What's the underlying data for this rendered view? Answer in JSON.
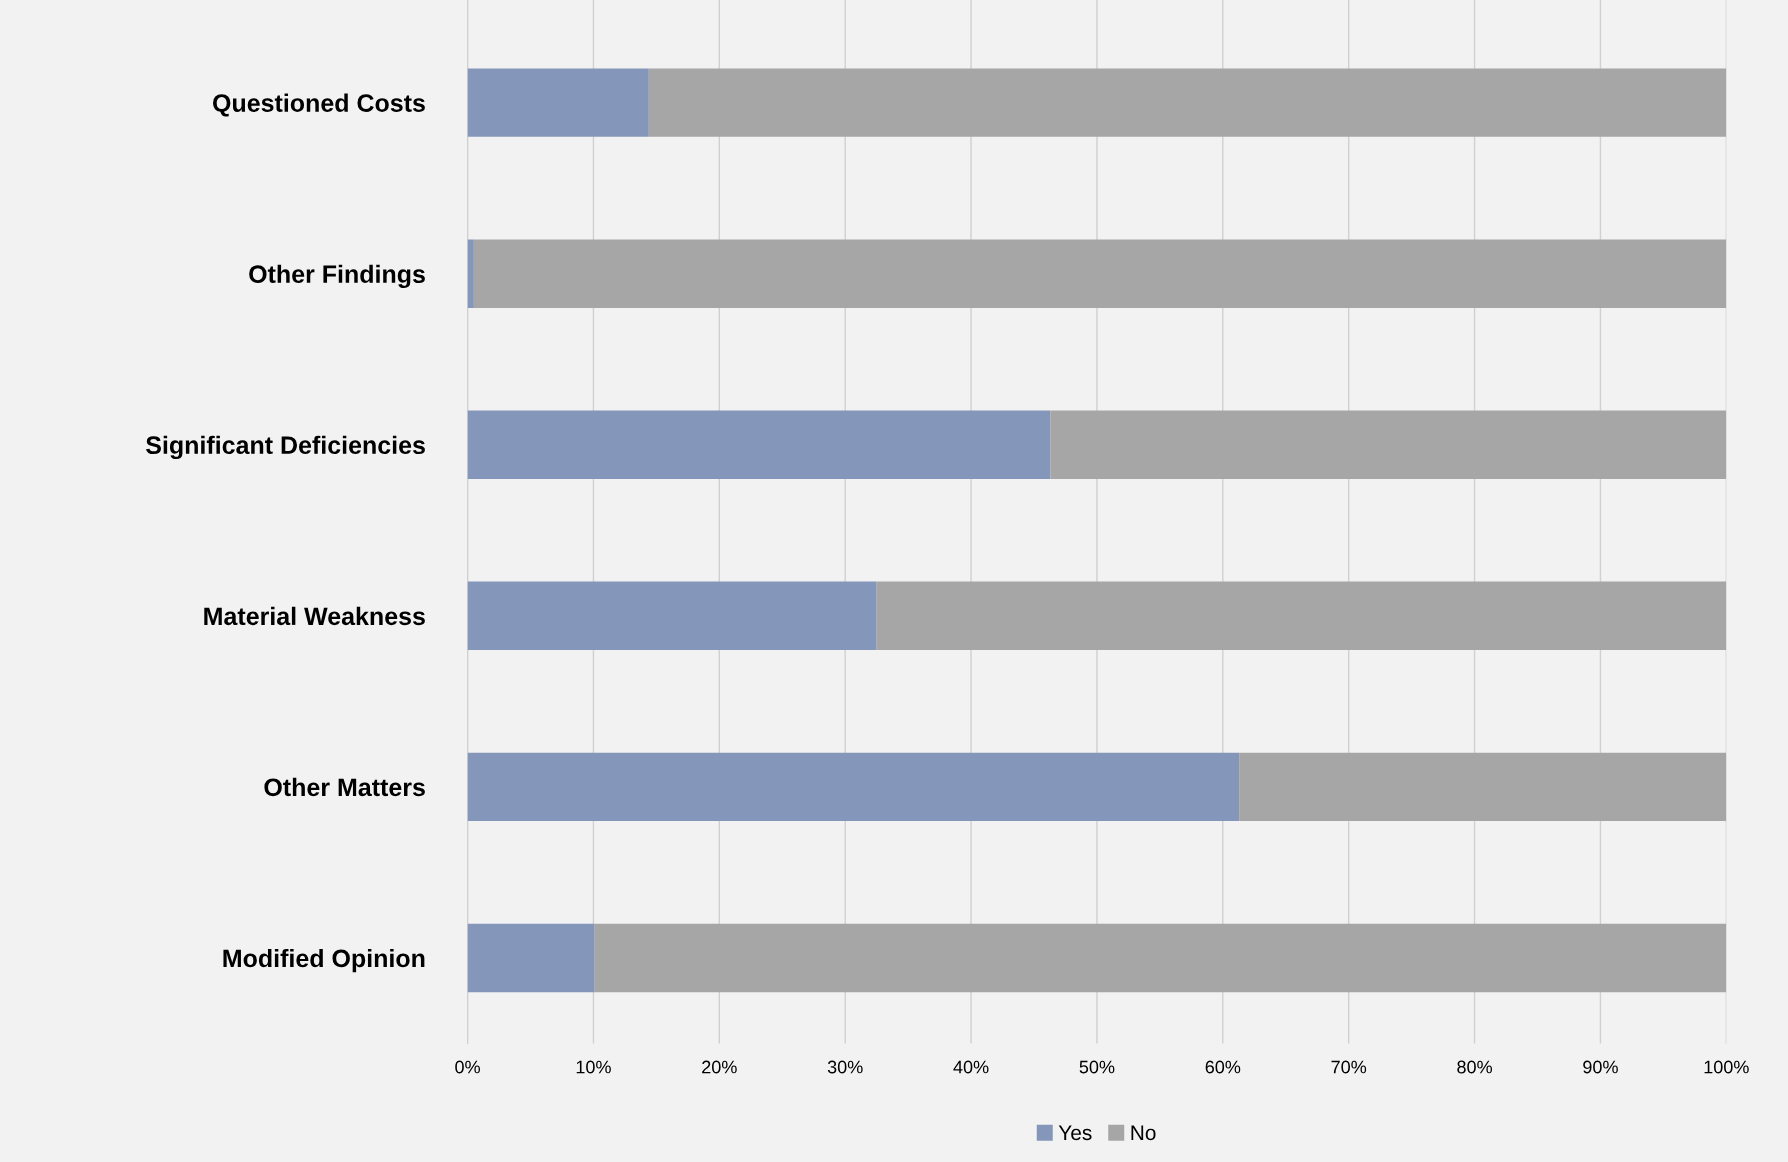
{
  "chart_data": {
    "type": "bar",
    "orientation": "horizontal",
    "stacked": true,
    "categories": [
      "Questioned Costs",
      "Other Findings",
      "Significant Deficiencies",
      "Material Weakness",
      "Other Matters",
      "Modified Opinion"
    ],
    "series": [
      {
        "name": "Yes",
        "color": "#8496b9",
        "values": [
          14.4,
          0.5,
          46.3,
          32.5,
          61.3,
          10.1
        ]
      },
      {
        "name": "No",
        "color": "#a6a6a6",
        "values": [
          85.6,
          99.5,
          53.7,
          67.5,
          38.7,
          89.9
        ]
      }
    ],
    "xlim": [
      0,
      100
    ],
    "xticks": [
      {
        "value": 0,
        "label": "0%"
      },
      {
        "value": 10,
        "label": "10%"
      },
      {
        "value": 20,
        "label": "20%"
      },
      {
        "value": 30,
        "label": "30%"
      },
      {
        "value": 40,
        "label": "40%"
      },
      {
        "value": 50,
        "label": "50%"
      },
      {
        "value": 60,
        "label": "60%"
      },
      {
        "value": 70,
        "label": "70%"
      },
      {
        "value": 80,
        "label": "80%"
      },
      {
        "value": 90,
        "label": "90%"
      },
      {
        "value": 100,
        "label": "100%"
      }
    ],
    "grid": "x",
    "legend": "bottom"
  }
}
